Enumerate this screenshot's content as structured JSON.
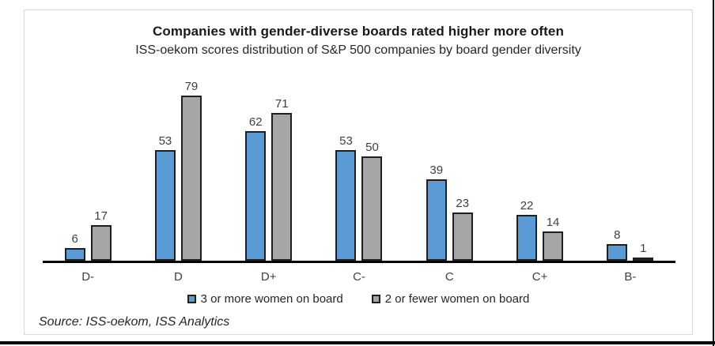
{
  "chart_data": {
    "type": "bar",
    "title": "Companies with gender-diverse boards rated higher more often",
    "subtitle": "ISS-oekom scores distribution of S&P 500 companies by board gender diversity",
    "categories": [
      "D-",
      "D",
      "D+",
      "C-",
      "C",
      "C+",
      "B-"
    ],
    "series": [
      {
        "name": "3 or more women on board",
        "color": "#5B9BD5",
        "values": [
          6,
          53,
          62,
          53,
          39,
          22,
          8
        ]
      },
      {
        "name": "2 or fewer women on board",
        "color": "#A6A6A6",
        "values": [
          17,
          79,
          71,
          50,
          23,
          14,
          1
        ]
      }
    ],
    "ylim": [
      0,
      80
    ],
    "grid": false,
    "value_labels": true,
    "legend_position": "bottom",
    "axis_color": "#000000",
    "value_label_color": "#404040"
  },
  "source": {
    "label": "Source: ISS-oekom, ISS Analytics"
  }
}
